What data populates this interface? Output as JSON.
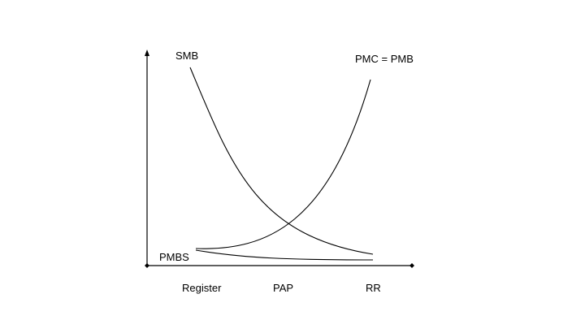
{
  "labels": {
    "smb": "SMB",
    "pmc_pmb": "PMC = PMB",
    "pmbs": "PMBS"
  },
  "x_tick_labels": [
    "Register",
    "PAP",
    "RR"
  ],
  "colors": {
    "line": "#000000",
    "background": "#ffffff"
  }
}
